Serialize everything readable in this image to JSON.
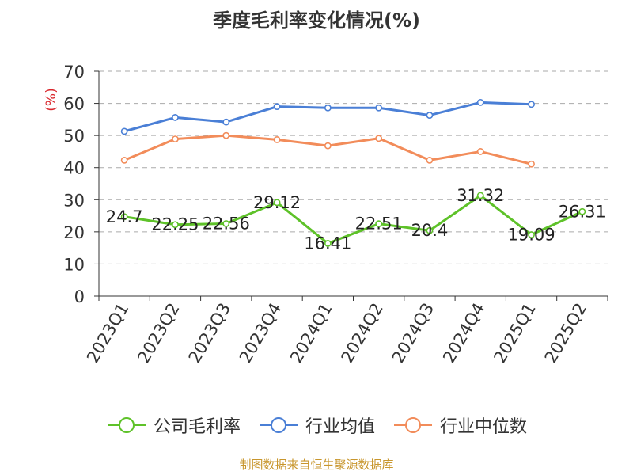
{
  "title": "季度毛利率变化情况(%)",
  "source": "制图数据来自恒生聚源数据库",
  "chart_data": {
    "type": "line",
    "title": "季度毛利率变化情况(%)",
    "ylabel": "(%)",
    "ylim": [
      0,
      70
    ],
    "yticks": [
      0,
      10,
      20,
      30,
      40,
      50,
      60,
      70
    ],
    "grid": true,
    "legend_position": "bottom",
    "categories": [
      "2023Q1",
      "2023Q2",
      "2023Q3",
      "2023Q4",
      "2024Q1",
      "2024Q2",
      "2024Q3",
      "2024Q4",
      "2025Q1",
      "2025Q2"
    ],
    "series": [
      {
        "name": "公司毛利率",
        "color": "#5ec229",
        "values": [
          24.7,
          22.25,
          22.56,
          29.12,
          16.41,
          22.51,
          20.4,
          31.32,
          19.09,
          26.31
        ],
        "labels": [
          "24.7",
          "22.25",
          "22.56",
          "29.12",
          "16.41",
          "22.51",
          "20.4",
          "31.32",
          "19.09",
          "26.31"
        ]
      },
      {
        "name": "行业均值",
        "color": "#4a7fd6",
        "values": [
          51.3,
          55.6,
          54.2,
          59.0,
          58.6,
          58.6,
          56.3,
          60.3,
          59.7,
          null
        ]
      },
      {
        "name": "行业中位数",
        "color": "#f28c5a",
        "values": [
          42.3,
          48.9,
          50.0,
          48.7,
          46.8,
          49.1,
          42.3,
          45.0,
          41.1,
          null
        ]
      }
    ]
  }
}
